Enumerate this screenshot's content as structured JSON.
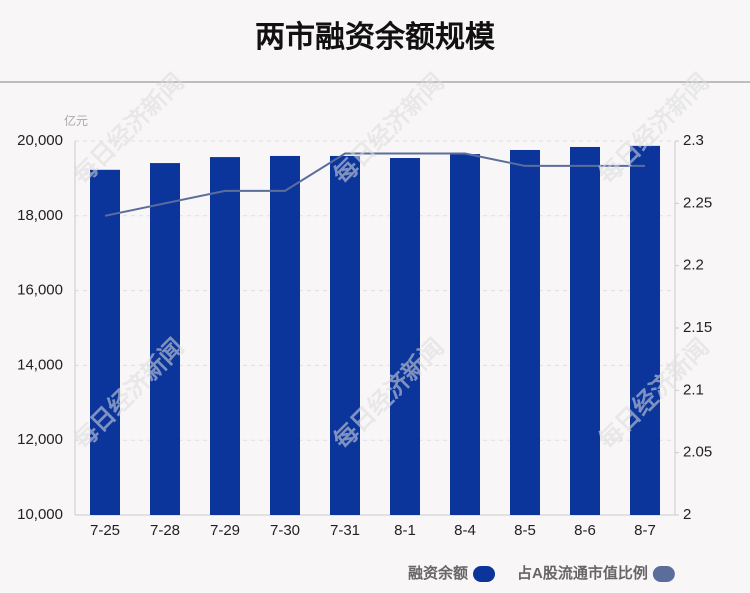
{
  "chart_data": {
    "type": "bar",
    "title": "两市融资余额规模",
    "unit": "亿元",
    "watermark": "每日经济新闻",
    "categories": [
      "7-25",
      "7-28",
      "7-29",
      "7-30",
      "7-31",
      "8-1",
      "8-4",
      "8-5",
      "8-6",
      "8-7"
    ],
    "series": [
      {
        "name": "融资余额",
        "type": "bar",
        "color": "#0c359c",
        "values": [
          19230,
          19410,
          19570,
          19600,
          19600,
          19545,
          19650,
          19760,
          19840,
          19870
        ]
      },
      {
        "name": "占A股流通市值比例",
        "type": "line",
        "axis": "y2",
        "color": "#5b6e9b",
        "values": [
          2.24,
          2.25,
          2.26,
          2.26,
          2.29,
          2.29,
          2.29,
          2.28,
          2.28,
          2.28
        ]
      }
    ],
    "ylim": [
      10000,
      20000
    ],
    "yticks": [
      {
        "value": 10000,
        "label": "10,000"
      },
      {
        "value": 12000,
        "label": "12,000"
      },
      {
        "value": 14000,
        "label": "14,000"
      },
      {
        "value": 16000,
        "label": "16,000"
      },
      {
        "value": 18000,
        "label": "18,000"
      },
      {
        "value": 20000,
        "label": "20,000"
      }
    ],
    "y2lim": [
      2,
      2.3
    ],
    "y2ticks": [
      2,
      2.05,
      2.1,
      2.15,
      2.2,
      2.25,
      2.3
    ],
    "grid": true
  }
}
